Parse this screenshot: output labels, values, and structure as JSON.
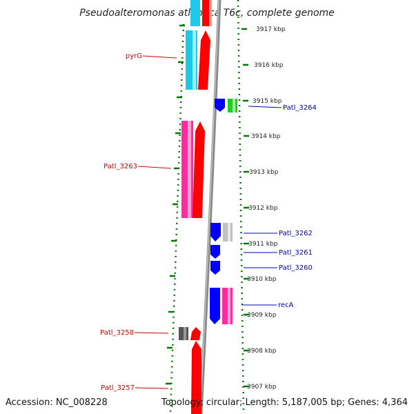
{
  "title": "Pseudoalteromonas atlantica T6c, complete genome",
  "footer": {
    "accession": "Accession: NC_008228",
    "summary": "Topology: circular; Length: 5,187,005 bp; Genes: 4,364"
  },
  "colors": {
    "forward_gene": "#ff0000",
    "reverse_gene": "#0000ff",
    "cyan": "#1ec8e8",
    "magenta": "#ff2aa0",
    "green": "#22cc22",
    "gray": "#c0c0c0",
    "dark_gray": "#555555",
    "ticks": "#007700",
    "backbone": "#808080",
    "left_label": "#cc0000",
    "right_label": "#0000aa"
  },
  "kbp_ticks": [
    "3917 kbp",
    "3916 kbp",
    "3915 kbp",
    "3914 kbp",
    "3913 kbp",
    "3912 kbp",
    "3911 kbp",
    "3910 kbp",
    "3909 kbp",
    "3908 kbp",
    "3907 kbp"
  ],
  "left_labels": [
    "pyrG",
    "Patl_3263",
    "Patl_3258",
    "Patl_3257"
  ],
  "right_labels": [
    "Patl_3264",
    "Patl_3262",
    "Patl_3261",
    "Patl_3260",
    "recA"
  ]
}
